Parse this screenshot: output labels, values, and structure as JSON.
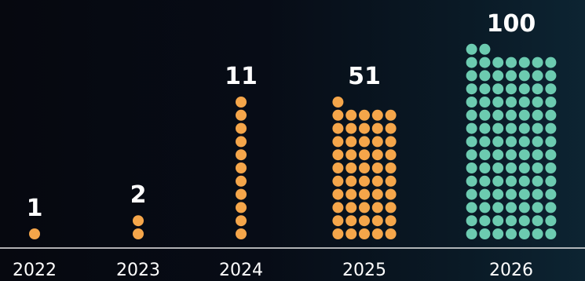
{
  "chart_data": {
    "type": "bar",
    "style": "dot-stack",
    "categories": [
      "2022",
      "2023",
      "2024",
      "2025",
      "2026"
    ],
    "values": [
      1,
      2,
      11,
      51,
      100
    ],
    "value_labels": [
      "1",
      "2",
      "11",
      "51",
      "100"
    ],
    "title": "",
    "xlabel": "",
    "ylabel": "",
    "grid": false,
    "colors": {
      "past": "#f5a64a",
      "projected": "#6ccbb0",
      "baseline": "#e8e8e8",
      "text": "#ffffff"
    },
    "projected_categories": [
      "2026"
    ]
  }
}
